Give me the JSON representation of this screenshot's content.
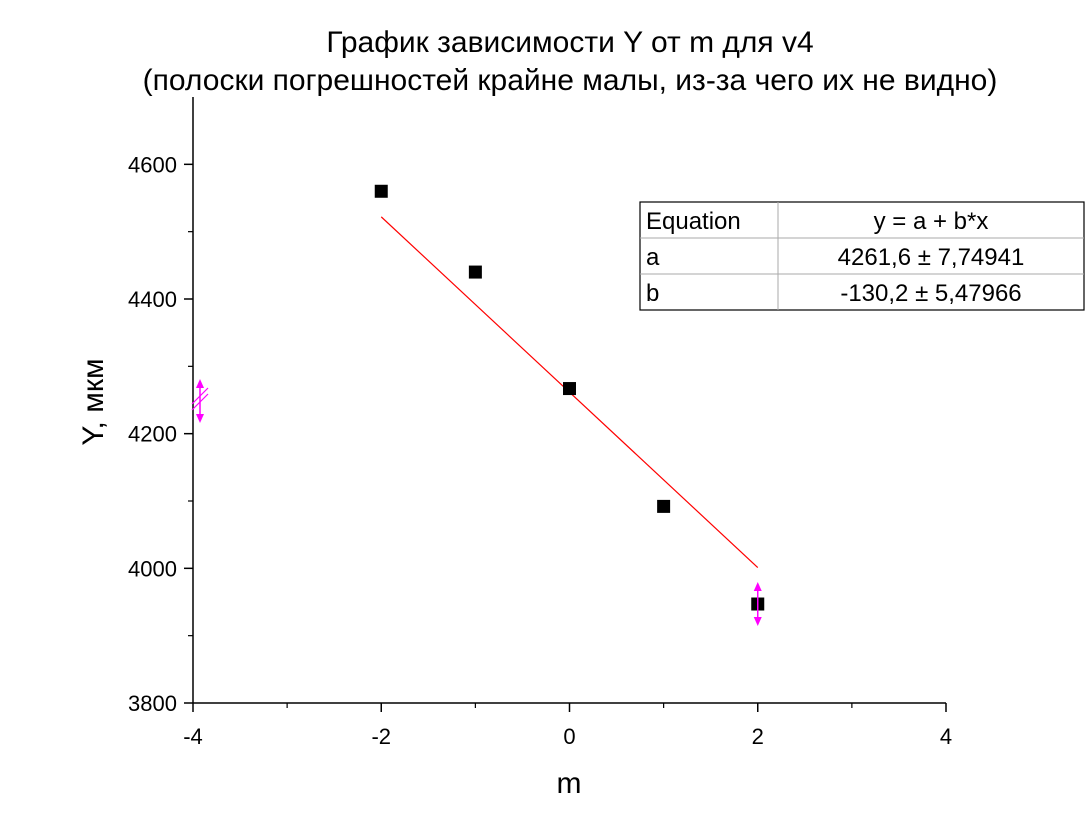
{
  "chart_data": {
    "type": "scatter",
    "title": "График зависимости Y от m для v4",
    "subtitle": "(полоски погрешностей крайне малы, из-за чего их не видно)",
    "xlabel": "m",
    "ylabel": "Y, мкм",
    "xlim": [
      -4,
      4
    ],
    "ylim": [
      3800,
      4700
    ],
    "x_ticks": [
      -4,
      -2,
      0,
      2,
      4
    ],
    "y_ticks": [
      3800,
      4000,
      4200,
      4400,
      4600
    ],
    "grid": false,
    "series": [
      {
        "x": [
          -2,
          -1,
          0,
          1,
          2
        ],
        "y": [
          4560,
          4440,
          4267,
          4092,
          3947
        ],
        "marker": "square",
        "color": "#000000"
      }
    ],
    "fit_line": {
      "x_range": [
        -2,
        2
      ],
      "intercept": 4261.6,
      "slope": -130.2,
      "color": "#ff0000"
    },
    "fit_table": {
      "header": [
        "Equation",
        "y = a + b*x"
      ],
      "rows": [
        [
          "a",
          "4261,6 ± 7,74941"
        ],
        [
          "b",
          "-130,2 ± 5,47966"
        ]
      ]
    },
    "accent_color": "#ff00ff"
  }
}
